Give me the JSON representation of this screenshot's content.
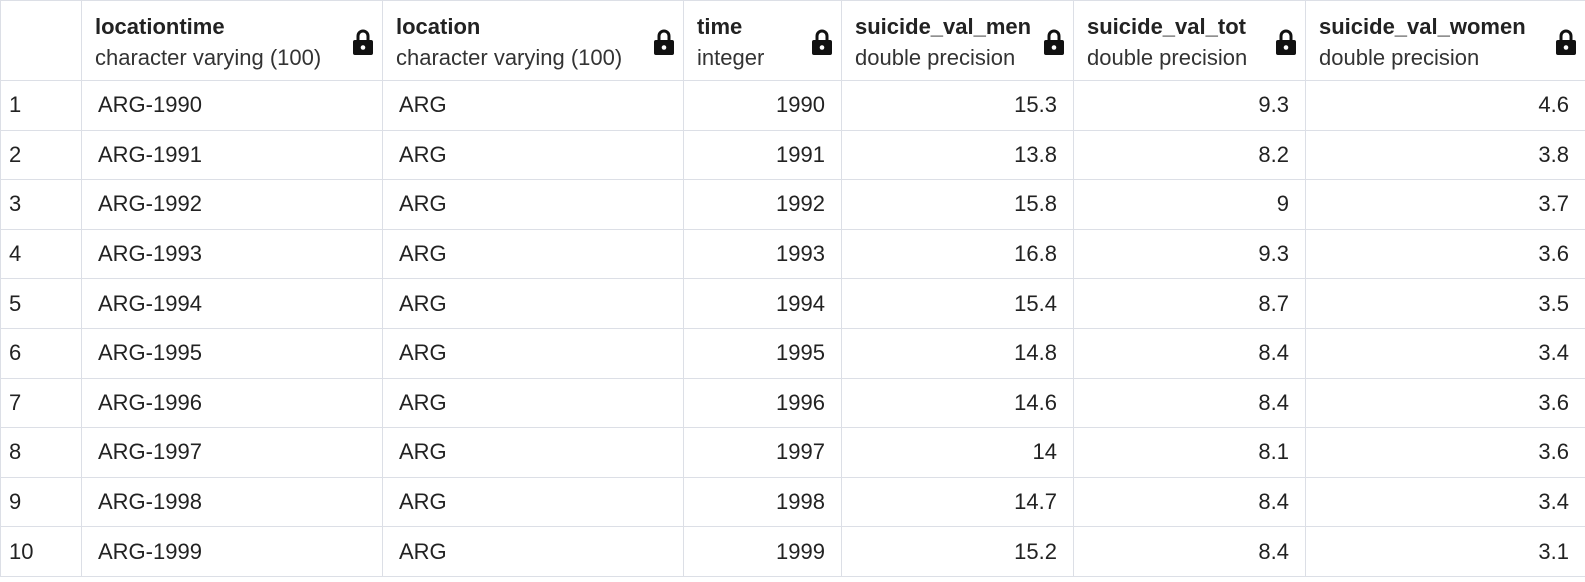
{
  "columns": [
    {
      "name": "locationtime",
      "type": "character varying (100)",
      "icon": "lock-icon"
    },
    {
      "name": "location",
      "type": "character varying (100)",
      "icon": "lock-icon"
    },
    {
      "name": "time",
      "type": "integer",
      "icon": "lock-icon"
    },
    {
      "name": "suicide_val_men",
      "type": "double precision",
      "icon": "lock-icon"
    },
    {
      "name": "suicide_val_tot",
      "type": "double precision",
      "icon": "lock-icon"
    },
    {
      "name": "suicide_val_women",
      "type": "double precision",
      "icon": "lock-icon"
    }
  ],
  "rows": [
    {
      "n": "1",
      "locationtime": "ARG-1990",
      "location": "ARG",
      "time": "1990",
      "men": "15.3",
      "tot": "9.3",
      "women": "4.6"
    },
    {
      "n": "2",
      "locationtime": "ARG-1991",
      "location": "ARG",
      "time": "1991",
      "men": "13.8",
      "tot": "8.2",
      "women": "3.8"
    },
    {
      "n": "3",
      "locationtime": "ARG-1992",
      "location": "ARG",
      "time": "1992",
      "men": "15.8",
      "tot": "9",
      "women": "3.7"
    },
    {
      "n": "4",
      "locationtime": "ARG-1993",
      "location": "ARG",
      "time": "1993",
      "men": "16.8",
      "tot": "9.3",
      "women": "3.6"
    },
    {
      "n": "5",
      "locationtime": "ARG-1994",
      "location": "ARG",
      "time": "1994",
      "men": "15.4",
      "tot": "8.7",
      "women": "3.5"
    },
    {
      "n": "6",
      "locationtime": "ARG-1995",
      "location": "ARG",
      "time": "1995",
      "men": "14.8",
      "tot": "8.4",
      "women": "3.4"
    },
    {
      "n": "7",
      "locationtime": "ARG-1996",
      "location": "ARG",
      "time": "1996",
      "men": "14.6",
      "tot": "8.4",
      "women": "3.6"
    },
    {
      "n": "8",
      "locationtime": "ARG-1997",
      "location": "ARG",
      "time": "1997",
      "men": "14",
      "tot": "8.1",
      "women": "3.6"
    },
    {
      "n": "9",
      "locationtime": "ARG-1998",
      "location": "ARG",
      "time": "1998",
      "men": "14.7",
      "tot": "8.4",
      "women": "3.4"
    },
    {
      "n": "10",
      "locationtime": "ARG-1999",
      "location": "ARG",
      "time": "1999",
      "men": "15.2",
      "tot": "8.4",
      "women": "3.1"
    }
  ]
}
